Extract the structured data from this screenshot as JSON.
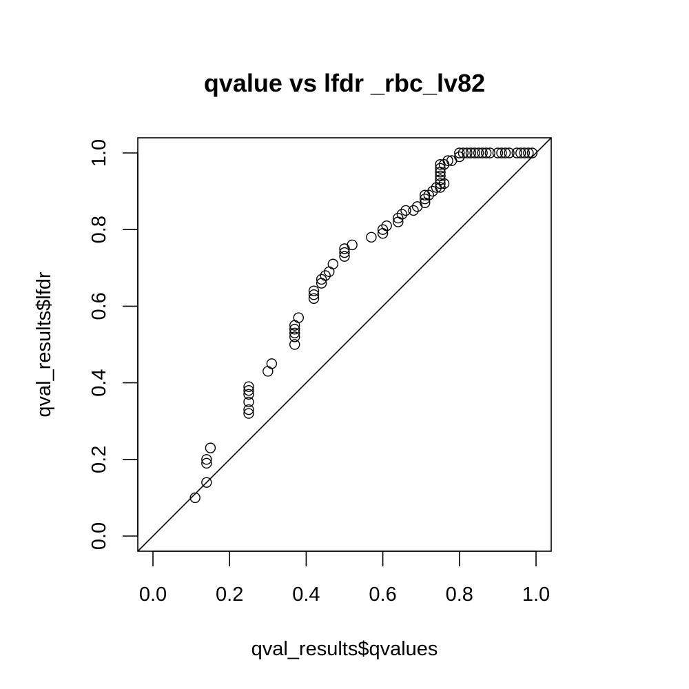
{
  "chart_data": {
    "type": "scatter",
    "title": "qvalue vs lfdr _rbc_lv82",
    "xlabel": "qval_results$qvalues",
    "ylabel": "qval_results$lfdr",
    "xlim": [
      0.0,
      1.0
    ],
    "ylim": [
      0.0,
      1.0
    ],
    "xticks": [
      "0.0",
      "0.2",
      "0.4",
      "0.6",
      "0.8",
      "1.0"
    ],
    "yticks": [
      "0.0",
      "0.2",
      "0.4",
      "0.6",
      "0.8",
      "1.0"
    ],
    "grid": false,
    "reference_line": "y = x",
    "marker": "open-circle",
    "points": [
      [
        0.11,
        0.1
      ],
      [
        0.14,
        0.14
      ],
      [
        0.14,
        0.19
      ],
      [
        0.14,
        0.2
      ],
      [
        0.15,
        0.23
      ],
      [
        0.25,
        0.32
      ],
      [
        0.25,
        0.33
      ],
      [
        0.25,
        0.35
      ],
      [
        0.25,
        0.37
      ],
      [
        0.25,
        0.38
      ],
      [
        0.25,
        0.39
      ],
      [
        0.3,
        0.43
      ],
      [
        0.31,
        0.45
      ],
      [
        0.37,
        0.5
      ],
      [
        0.37,
        0.52
      ],
      [
        0.37,
        0.53
      ],
      [
        0.37,
        0.54
      ],
      [
        0.37,
        0.55
      ],
      [
        0.38,
        0.57
      ],
      [
        0.42,
        0.62
      ],
      [
        0.42,
        0.63
      ],
      [
        0.42,
        0.64
      ],
      [
        0.44,
        0.66
      ],
      [
        0.44,
        0.67
      ],
      [
        0.45,
        0.68
      ],
      [
        0.46,
        0.69
      ],
      [
        0.47,
        0.71
      ],
      [
        0.5,
        0.73
      ],
      [
        0.5,
        0.74
      ],
      [
        0.5,
        0.75
      ],
      [
        0.52,
        0.76
      ],
      [
        0.57,
        0.78
      ],
      [
        0.6,
        0.79
      ],
      [
        0.6,
        0.8
      ],
      [
        0.61,
        0.81
      ],
      [
        0.64,
        0.82
      ],
      [
        0.64,
        0.83
      ],
      [
        0.65,
        0.84
      ],
      [
        0.66,
        0.85
      ],
      [
        0.68,
        0.85
      ],
      [
        0.69,
        0.86
      ],
      [
        0.71,
        0.87
      ],
      [
        0.71,
        0.88
      ],
      [
        0.71,
        0.89
      ],
      [
        0.72,
        0.89
      ],
      [
        0.73,
        0.9
      ],
      [
        0.74,
        0.91
      ],
      [
        0.75,
        0.91
      ],
      [
        0.75,
        0.92
      ],
      [
        0.75,
        0.93
      ],
      [
        0.75,
        0.94
      ],
      [
        0.75,
        0.95
      ],
      [
        0.75,
        0.96
      ],
      [
        0.75,
        0.97
      ],
      [
        0.76,
        0.92
      ],
      [
        0.76,
        0.97
      ],
      [
        0.77,
        0.98
      ],
      [
        0.78,
        0.98
      ],
      [
        0.8,
        0.99
      ],
      [
        0.8,
        1.0
      ],
      [
        0.81,
        1.0
      ],
      [
        0.82,
        1.0
      ],
      [
        0.83,
        1.0
      ],
      [
        0.84,
        1.0
      ],
      [
        0.85,
        1.0
      ],
      [
        0.86,
        1.0
      ],
      [
        0.87,
        1.0
      ],
      [
        0.88,
        1.0
      ],
      [
        0.9,
        1.0
      ],
      [
        0.91,
        1.0
      ],
      [
        0.92,
        1.0
      ],
      [
        0.93,
        1.0
      ],
      [
        0.95,
        1.0
      ],
      [
        0.96,
        1.0
      ],
      [
        0.97,
        1.0
      ],
      [
        0.98,
        1.0
      ],
      [
        0.99,
        1.0
      ]
    ]
  }
}
